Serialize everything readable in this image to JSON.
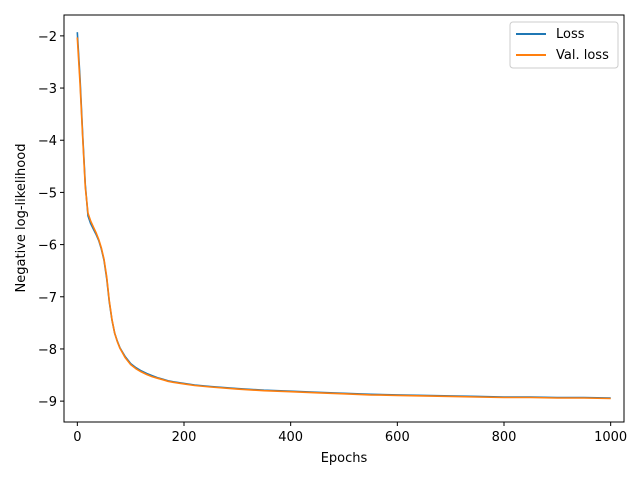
{
  "chart_data": {
    "type": "line",
    "xlabel": "Epochs",
    "ylabel": "Negative log-likelihood",
    "xlim": [
      -25,
      1025
    ],
    "ylim": [
      -9.4,
      -1.6
    ],
    "xticks": [
      0,
      200,
      400,
      600,
      800,
      1000
    ],
    "yticks": [
      -2,
      -3,
      -4,
      -5,
      -6,
      -7,
      -8,
      -9
    ],
    "xtick_labels": [
      "0",
      "200",
      "400",
      "600",
      "800",
      "1000"
    ],
    "ytick_labels": [
      "−2",
      "−3",
      "−4",
      "−5",
      "−6",
      "−7",
      "−8",
      "−9"
    ],
    "grid": false,
    "legend_position": "top-right",
    "series": [
      {
        "name": "Loss",
        "color": "#1f77b4",
        "x": [
          0,
          5,
          10,
          15,
          20,
          25,
          30,
          35,
          40,
          45,
          50,
          55,
          60,
          65,
          70,
          75,
          80,
          90,
          100,
          110,
          120,
          130,
          140,
          150,
          160,
          170,
          180,
          200,
          220,
          250,
          300,
          350,
          400,
          450,
          500,
          550,
          600,
          650,
          700,
          750,
          800,
          850,
          900,
          950,
          1000
        ],
        "y": [
          -1.93,
          -2.8,
          -3.9,
          -4.85,
          -5.45,
          -5.6,
          -5.7,
          -5.8,
          -5.92,
          -6.08,
          -6.3,
          -6.65,
          -7.1,
          -7.45,
          -7.7,
          -7.85,
          -7.98,
          -8.15,
          -8.28,
          -8.36,
          -8.42,
          -8.47,
          -8.51,
          -8.55,
          -8.58,
          -8.61,
          -8.63,
          -8.66,
          -8.69,
          -8.72,
          -8.76,
          -8.79,
          -8.81,
          -8.83,
          -8.85,
          -8.87,
          -8.88,
          -8.89,
          -8.9,
          -8.91,
          -8.92,
          -8.92,
          -8.93,
          -8.93,
          -8.94
        ]
      },
      {
        "name": "Val. loss",
        "color": "#ff7f0e",
        "x": [
          0,
          5,
          10,
          15,
          20,
          25,
          30,
          35,
          40,
          45,
          50,
          55,
          60,
          65,
          70,
          75,
          80,
          90,
          100,
          110,
          120,
          130,
          140,
          150,
          160,
          170,
          180,
          200,
          220,
          250,
          300,
          350,
          400,
          450,
          500,
          550,
          600,
          650,
          700,
          750,
          800,
          850,
          900,
          950,
          1000
        ],
        "y": [
          -2.03,
          -2.9,
          -3.95,
          -4.9,
          -5.4,
          -5.55,
          -5.66,
          -5.77,
          -5.9,
          -6.06,
          -6.28,
          -6.62,
          -7.08,
          -7.44,
          -7.7,
          -7.86,
          -7.99,
          -8.17,
          -8.3,
          -8.38,
          -8.44,
          -8.49,
          -8.53,
          -8.56,
          -8.59,
          -8.62,
          -8.64,
          -8.67,
          -8.7,
          -8.73,
          -8.77,
          -8.8,
          -8.82,
          -8.84,
          -8.86,
          -8.88,
          -8.89,
          -8.9,
          -8.91,
          -8.92,
          -8.93,
          -8.93,
          -8.94,
          -8.94,
          -8.95
        ]
      }
    ]
  }
}
